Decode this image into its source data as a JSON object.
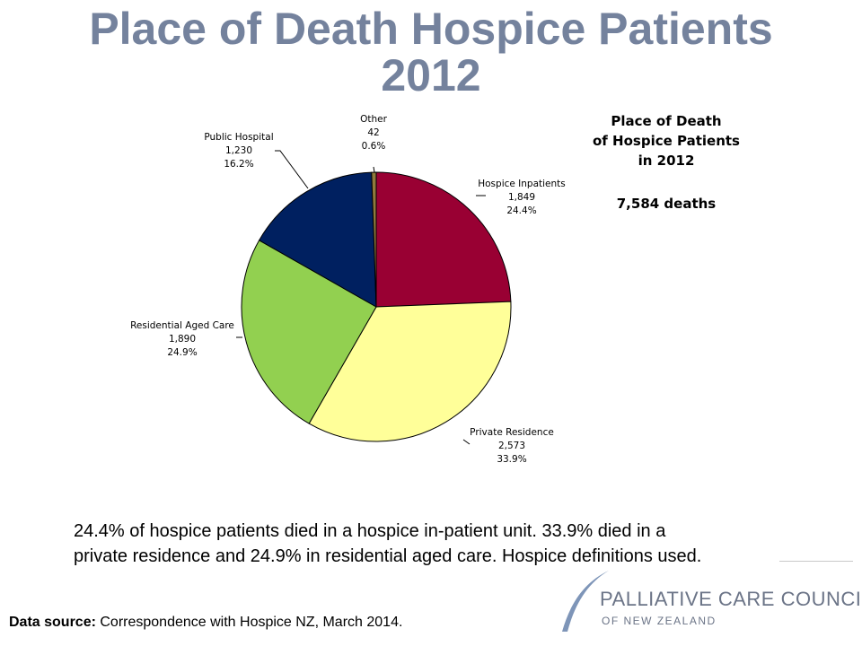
{
  "slide": {
    "title_line1": "Place of Death Hospice Patients",
    "title_line2": "2012",
    "title_color": "#74829d",
    "summary_line1": "24.4% of hospice patients died in a hospice in-patient unit. 33.9% died in a",
    "summary_line2": "private residence and 24.9% in residential aged care. Hospice definitions used.",
    "data_source_label": "Data source:",
    "data_source_text": " Correspondence with Hospice NZ, March 2014."
  },
  "logo": {
    "line1": "PALLIATIVE CARE COUNCIL",
    "line2": "OF NEW ZEALAND",
    "arc_color": "#7e95b8",
    "text_color": "#6b7487"
  },
  "chart_data": {
    "type": "pie",
    "title_lines": [
      "Place of Death",
      "of Hospice Patients",
      "in 2012"
    ],
    "total_label": "7,584 deaths",
    "total": 7584,
    "start_angle_deg": 0,
    "direction": "clockwise",
    "slices": [
      {
        "name": "Hospice Inpatients",
        "value": 1849,
        "value_label": "1,849",
        "percent_label": "24.4%",
        "color": "#990033"
      },
      {
        "name": "Private Residence",
        "value": 2573,
        "value_label": "2,573",
        "percent_label": "33.9%",
        "color": "#ffff99"
      },
      {
        "name": "Residential Aged Care",
        "value": 1890,
        "value_label": "1,890",
        "percent_label": "24.9%",
        "color": "#92d050"
      },
      {
        "name": "Public Hospital",
        "value": 1230,
        "value_label": "1,230",
        "percent_label": "16.2%",
        "color": "#002060"
      },
      {
        "name": "Other",
        "value": 42,
        "value_label": "42",
        "percent_label": "0.6%",
        "color": "#8f7a3c"
      }
    ]
  }
}
